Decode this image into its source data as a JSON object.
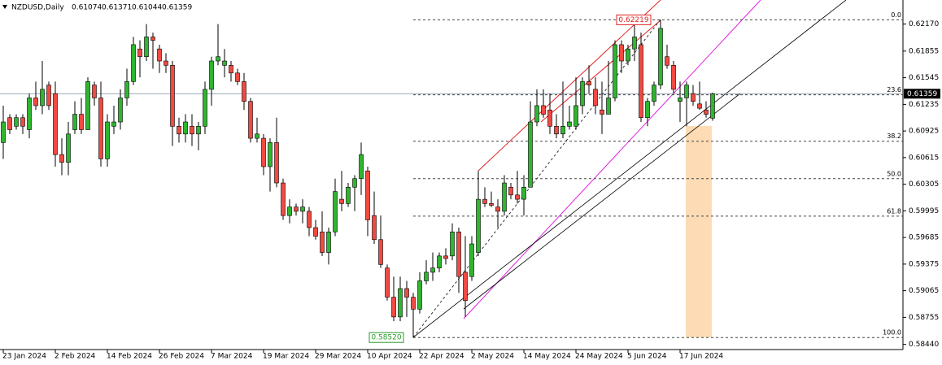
{
  "chart_data": {
    "type": "candlestick",
    "symbol": "NZDUSD,Daily",
    "categories": [
      "23 Jan 2024",
      null,
      null,
      null,
      null,
      null,
      null,
      null,
      "2 Feb 2024",
      null,
      null,
      null,
      null,
      null,
      null,
      null,
      "14 Feb 2024",
      null,
      null,
      null,
      null,
      null,
      null,
      null,
      "26 Feb 2024",
      null,
      null,
      null,
      null,
      null,
      null,
      null,
      "7 Mar 2024",
      null,
      null,
      null,
      null,
      null,
      null,
      null,
      "19 Mar 2024",
      null,
      null,
      null,
      null,
      null,
      null,
      null,
      "29 Mar 2024",
      null,
      null,
      null,
      null,
      null,
      null,
      null,
      "10 Apr 2024",
      null,
      null,
      null,
      null,
      null,
      null,
      null,
      "22 Apr 2024",
      null,
      null,
      null,
      null,
      null,
      null,
      null,
      "2 May 2024",
      null,
      null,
      null,
      null,
      null,
      null,
      null,
      "14 May 2024",
      null,
      null,
      null,
      null,
      null,
      null,
      null,
      "24 May 2024",
      null,
      null,
      null,
      null,
      null,
      null,
      null,
      "5 Jun 2024",
      null,
      null,
      null,
      null,
      null,
      null,
      null,
      "17 Jun 2024",
      null,
      null,
      null,
      null,
      null
    ],
    "ohlc": [
      [
        0.6079,
        0.6122,
        0.606,
        0.6103
      ],
      [
        0.6108,
        0.6112,
        0.6089,
        0.6094
      ],
      [
        0.6098,
        0.6112,
        0.6094,
        0.6108
      ],
      [
        0.6108,
        0.6112,
        0.6089,
        0.6098
      ],
      [
        0.6094,
        0.6136,
        0.6084,
        0.6131
      ],
      [
        0.6131,
        0.615,
        0.6117,
        0.6122
      ],
      [
        0.6122,
        0.6174,
        0.6112,
        0.6141
      ],
      [
        0.6146,
        0.615,
        0.6117,
        0.6122
      ],
      [
        0.6136,
        0.615,
        0.6051,
        0.6065
      ],
      [
        0.6065,
        0.6084,
        0.6041,
        0.6056
      ],
      [
        0.6056,
        0.6103,
        0.6041,
        0.6089
      ],
      [
        0.6094,
        0.6127,
        0.6089,
        0.6112
      ],
      [
        0.6112,
        0.6131,
        0.6089,
        0.6094
      ],
      [
        0.6094,
        0.6155,
        0.6094,
        0.615
      ],
      [
        0.6146,
        0.615,
        0.6122,
        0.6131
      ],
      [
        0.6131,
        0.615,
        0.6051,
        0.606
      ],
      [
        0.606,
        0.6112,
        0.6051,
        0.6103
      ],
      [
        0.6098,
        0.6122,
        0.6089,
        0.6103
      ],
      [
        0.6103,
        0.6141,
        0.6094,
        0.6131
      ],
      [
        0.6131,
        0.6165,
        0.6122,
        0.615
      ],
      [
        0.615,
        0.6202,
        0.6146,
        0.6193
      ],
      [
        0.6188,
        0.6198,
        0.6155,
        0.6179
      ],
      [
        0.6179,
        0.6217,
        0.6174,
        0.6202
      ],
      [
        0.6202,
        0.6207,
        0.6165,
        0.6198
      ],
      [
        0.6188,
        0.6193,
        0.616,
        0.6174
      ],
      [
        0.6174,
        0.6183,
        0.616,
        0.6169
      ],
      [
        0.6169,
        0.6174,
        0.6075,
        0.6098
      ],
      [
        0.6098,
        0.6108,
        0.6079,
        0.6089
      ],
      [
        0.6089,
        0.6112,
        0.6079,
        0.6103
      ],
      [
        0.6098,
        0.6112,
        0.6075,
        0.6089
      ],
      [
        0.6089,
        0.6103,
        0.607,
        0.6098
      ],
      [
        0.6098,
        0.615,
        0.6089,
        0.6141
      ],
      [
        0.6141,
        0.6179,
        0.6122,
        0.6174
      ],
      [
        0.6174,
        0.6217,
        0.6169,
        0.6179
      ],
      [
        0.6169,
        0.6188,
        0.6155,
        0.6174
      ],
      [
        0.6169,
        0.6174,
        0.615,
        0.616
      ],
      [
        0.616,
        0.6165,
        0.6146,
        0.615
      ],
      [
        0.615,
        0.616,
        0.6117,
        0.6127
      ],
      [
        0.6127,
        0.6131,
        0.6079,
        0.6084
      ],
      [
        0.6084,
        0.6108,
        0.6079,
        0.6089
      ],
      [
        0.6084,
        0.6089,
        0.6041,
        0.6051
      ],
      [
        0.6051,
        0.6084,
        0.6022,
        0.6079
      ],
      [
        0.6079,
        0.6108,
        0.6027,
        0.6032
      ],
      [
        0.6032,
        0.6037,
        0.5989,
        0.5994
      ],
      [
        0.5994,
        0.6013,
        0.5985,
        0.6004
      ],
      [
        0.6004,
        0.6008,
        0.5994,
        0.5999
      ],
      [
        0.5999,
        0.6013,
        0.5985,
        0.6004
      ],
      [
        0.5999,
        0.6004,
        0.597,
        0.598
      ],
      [
        0.598,
        0.5989,
        0.5966,
        0.597
      ],
      [
        0.5975,
        0.5999,
        0.5947,
        0.5951
      ],
      [
        0.5951,
        0.598,
        0.5937,
        0.5975
      ],
      [
        0.5975,
        0.6037,
        0.597,
        0.6022
      ],
      [
        0.6013,
        0.6046,
        0.5999,
        0.6008
      ],
      [
        0.6008,
        0.6032,
        0.6004,
        0.6027
      ],
      [
        0.6027,
        0.6041,
        0.5999,
        0.6037
      ],
      [
        0.6037,
        0.6079,
        0.6018,
        0.6065
      ],
      [
        0.6046,
        0.6051,
        0.597,
        0.5989
      ],
      [
        0.5994,
        0.6022,
        0.5961,
        0.5966
      ],
      [
        0.5966,
        0.5994,
        0.5933,
        0.5937
      ],
      [
        0.5933,
        0.5937,
        0.5895,
        0.5899
      ],
      [
        0.5899,
        0.5923,
        0.5871,
        0.5876
      ],
      [
        0.5876,
        0.5923,
        0.5871,
        0.5909
      ],
      [
        0.5909,
        0.5918,
        0.5876,
        0.5899
      ],
      [
        0.5899,
        0.5904,
        0.5852,
        0.5885
      ],
      [
        0.5885,
        0.5928,
        0.588,
        0.5918
      ],
      [
        0.5918,
        0.5942,
        0.5914,
        0.5928
      ],
      [
        0.5928,
        0.5951,
        0.5918,
        0.5933
      ],
      [
        0.5933,
        0.5951,
        0.5928,
        0.5947
      ],
      [
        0.5947,
        0.5956,
        0.5937,
        0.5944
      ],
      [
        0.5947,
        0.5985,
        0.5942,
        0.5975
      ],
      [
        0.5975,
        0.598,
        0.5904,
        0.5923
      ],
      [
        0.5928,
        0.597,
        0.5876,
        0.5895
      ],
      [
        0.5923,
        0.597,
        0.5918,
        0.5961
      ],
      [
        0.5951,
        0.6046,
        0.5947,
        0.6013
      ],
      [
        0.6013,
        0.6027,
        0.6004,
        0.6008
      ],
      [
        0.6008,
        0.6022,
        0.6004,
        0.6006
      ],
      [
        0.6004,
        0.6013,
        0.598,
        0.5999
      ],
      [
        0.5999,
        0.6041,
        0.5994,
        0.6032
      ],
      [
        0.6027,
        0.6032,
        0.6013,
        0.6018
      ],
      [
        0.6018,
        0.6046,
        0.6008,
        0.6013
      ],
      [
        0.6013,
        0.6041,
        0.5994,
        0.6027
      ],
      [
        0.6027,
        0.6127,
        0.6027,
        0.6103
      ],
      [
        0.6103,
        0.6141,
        0.6098,
        0.6122
      ],
      [
        0.6122,
        0.6141,
        0.6108,
        0.6112
      ],
      [
        0.6117,
        0.6136,
        0.6089,
        0.6098
      ],
      [
        0.6098,
        0.6112,
        0.6084,
        0.6089
      ],
      [
        0.6089,
        0.615,
        0.6084,
        0.6098
      ],
      [
        0.6098,
        0.6122,
        0.6094,
        0.6103
      ],
      [
        0.6098,
        0.6155,
        0.6094,
        0.6122
      ],
      [
        0.6122,
        0.6155,
        0.6112,
        0.615
      ],
      [
        0.615,
        0.6169,
        0.6136,
        0.6146
      ],
      [
        0.6141,
        0.6155,
        0.6112,
        0.6122
      ],
      [
        0.6117,
        0.615,
        0.6089,
        0.6112
      ],
      [
        0.6112,
        0.6174,
        0.6112,
        0.6131
      ],
      [
        0.6131,
        0.6198,
        0.6127,
        0.6193
      ],
      [
        0.6193,
        0.6198,
        0.616,
        0.6174
      ],
      [
        0.6174,
        0.6193,
        0.6169,
        0.6188
      ],
      [
        0.6188,
        0.6217,
        0.6174,
        0.6202
      ],
      [
        0.6193,
        0.6207,
        0.6103,
        0.6108
      ],
      [
        0.6108,
        0.6131,
        0.6098,
        0.6127
      ],
      [
        0.6127,
        0.615,
        0.6122,
        0.6146
      ],
      [
        0.6146,
        0.62219,
        0.6141,
        0.6212
      ],
      [
        0.6179,
        0.6193,
        0.6165,
        0.6169
      ],
      [
        0.6169,
        0.6174,
        0.6136,
        0.6141
      ],
      [
        0.6127,
        0.615,
        0.6103,
        0.6131
      ],
      [
        0.6131,
        0.615,
        0.6098,
        0.6146
      ],
      [
        0.6136,
        0.6146,
        0.6122,
        0.6127
      ],
      [
        0.6124,
        0.615,
        0.6117,
        0.6119
      ],
      [
        0.6117,
        0.6127,
        0.6108,
        0.6112
      ],
      [
        0.61074,
        0.61371,
        0.61044,
        0.61359
      ]
    ],
    "up_color": "#2fb52f",
    "down_color": "#f04a42",
    "ylim": [
      0.5838,
      0.6245
    ],
    "yticks": [
      {
        "value": 0.6217,
        "label": "0.62170"
      },
      0.61855,
      0.61545,
      0.61235,
      0.60925,
      0.60615,
      0.60305,
      0.59995,
      0.59685,
      0.59375,
      0.59065,
      0.58755,
      {
        "value": 0.5844,
        "label": "0.58440"
      }
    ],
    "fibo": {
      "high": {
        "value": 0.62219,
        "label": "0.62219"
      },
      "low": {
        "value": 0.5852,
        "label": "0.58520"
      },
      "levels": [
        {
          "value": 0,
          "label": "0.0"
        },
        23.6,
        38.2,
        {
          "value": 50,
          "label": "50.0"
        },
        61.8,
        {
          "value": 100,
          "label": "100.0"
        }
      ]
    }
  }
}
